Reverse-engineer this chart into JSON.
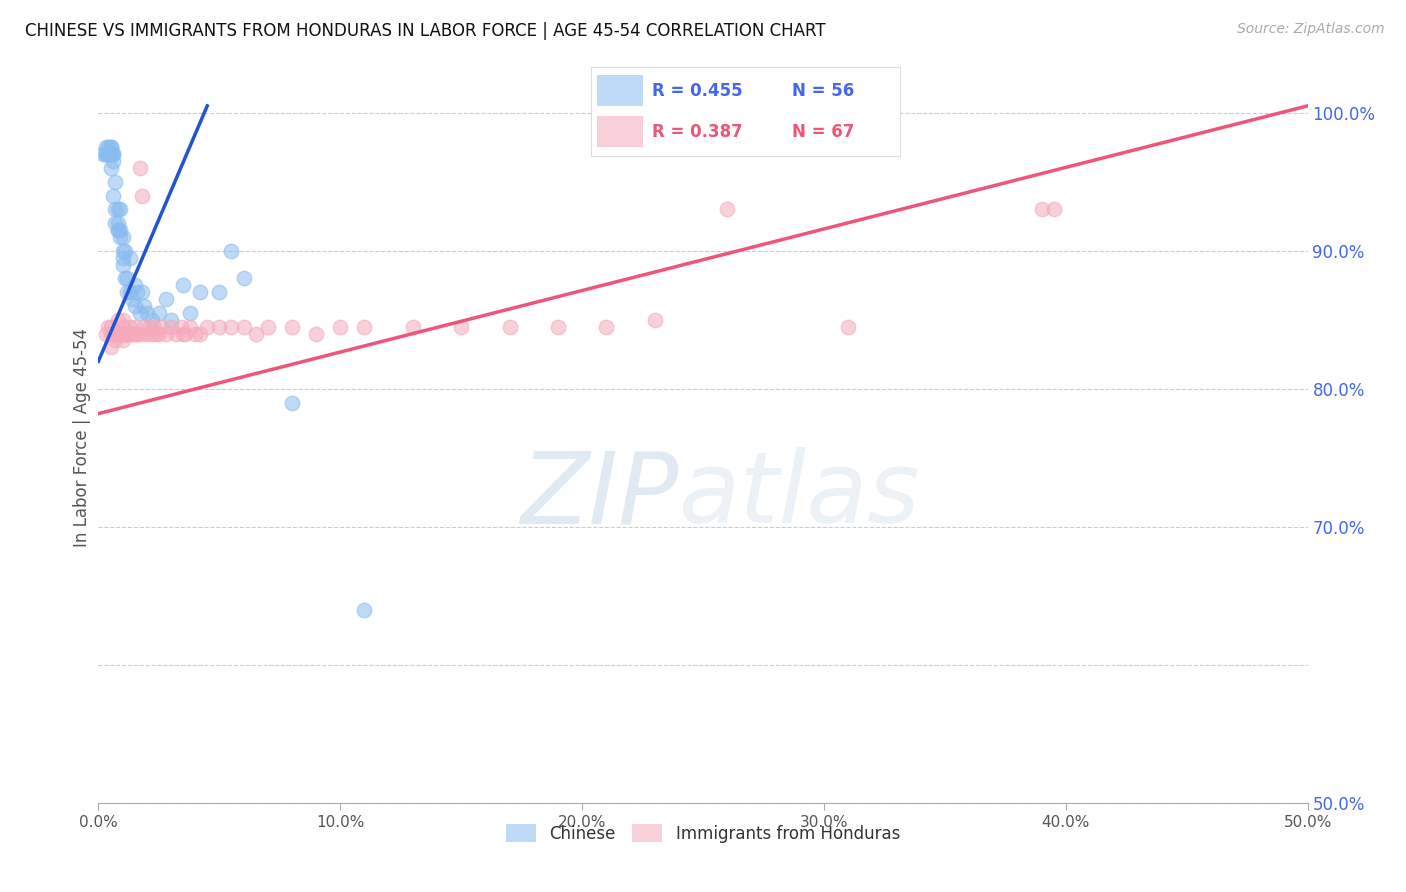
{
  "title": "CHINESE VS IMMIGRANTS FROM HONDURAS IN LABOR FORCE | AGE 45-54 CORRELATION CHART",
  "source": "Source: ZipAtlas.com",
  "ylabel": "In Labor Force | Age 45-54",
  "right_ytick_labels": [
    "100.0%",
    "90.0%",
    "80.0%",
    "70.0%",
    "50.0%"
  ],
  "right_ytick_values": [
    1.0,
    0.9,
    0.8,
    0.7,
    0.5
  ],
  "xlim": [
    0.0,
    0.5
  ],
  "ylim": [
    0.5,
    1.03
  ],
  "xtick_labels": [
    "0.0%",
    "10.0%",
    "20.0%",
    "30.0%",
    "40.0%",
    "50.0%"
  ],
  "xtick_values": [
    0.0,
    0.1,
    0.2,
    0.3,
    0.4,
    0.5
  ],
  "legend_blue_r": "R = 0.455",
  "legend_blue_n": "N = 56",
  "legend_pink_r": "R = 0.387",
  "legend_pink_n": "N = 67",
  "legend_blue_label": "Chinese",
  "legend_pink_label": "Immigrants from Honduras",
  "blue_color": "#89BCEF",
  "pink_color": "#F4AABC",
  "blue_line_color": "#2255CC",
  "pink_line_color": "#EE5577",
  "right_axis_color": "#4466EE",
  "blue_legend_text_color": "#4466EE",
  "pink_legend_text_color": "#EE5577",
  "blue_scatter_x": [
    0.002,
    0.003,
    0.003,
    0.003,
    0.004,
    0.004,
    0.004,
    0.005,
    0.005,
    0.005,
    0.005,
    0.005,
    0.006,
    0.006,
    0.006,
    0.006,
    0.007,
    0.007,
    0.007,
    0.008,
    0.008,
    0.008,
    0.008,
    0.009,
    0.009,
    0.009,
    0.01,
    0.01,
    0.01,
    0.01,
    0.011,
    0.011,
    0.012,
    0.012,
    0.013,
    0.013,
    0.014,
    0.015,
    0.015,
    0.016,
    0.017,
    0.018,
    0.019,
    0.02,
    0.022,
    0.025,
    0.028,
    0.03,
    0.035,
    0.038,
    0.042,
    0.05,
    0.055,
    0.06,
    0.08,
    0.11
  ],
  "blue_scatter_y": [
    0.97,
    0.97,
    0.975,
    0.97,
    0.97,
    0.975,
    0.97,
    0.96,
    0.97,
    0.975,
    0.975,
    0.97,
    0.97,
    0.97,
    0.965,
    0.94,
    0.92,
    0.93,
    0.95,
    0.915,
    0.92,
    0.915,
    0.93,
    0.91,
    0.915,
    0.93,
    0.89,
    0.9,
    0.895,
    0.91,
    0.88,
    0.9,
    0.87,
    0.88,
    0.895,
    0.87,
    0.865,
    0.86,
    0.875,
    0.87,
    0.855,
    0.87,
    0.86,
    0.855,
    0.85,
    0.855,
    0.865,
    0.85,
    0.875,
    0.855,
    0.87,
    0.87,
    0.9,
    0.88,
    0.79,
    0.64
  ],
  "pink_scatter_x": [
    0.003,
    0.004,
    0.005,
    0.005,
    0.005,
    0.006,
    0.006,
    0.007,
    0.007,
    0.008,
    0.008,
    0.009,
    0.009,
    0.01,
    0.01,
    0.01,
    0.01,
    0.011,
    0.011,
    0.012,
    0.012,
    0.013,
    0.014,
    0.014,
    0.015,
    0.016,
    0.016,
    0.017,
    0.018,
    0.018,
    0.019,
    0.02,
    0.021,
    0.022,
    0.023,
    0.024,
    0.025,
    0.026,
    0.028,
    0.03,
    0.032,
    0.034,
    0.035,
    0.036,
    0.038,
    0.04,
    0.042,
    0.045,
    0.05,
    0.055,
    0.06,
    0.065,
    0.07,
    0.08,
    0.09,
    0.1,
    0.11,
    0.13,
    0.15,
    0.17,
    0.19,
    0.21,
    0.23,
    0.26,
    0.31,
    0.39,
    0.395
  ],
  "pink_scatter_y": [
    0.84,
    0.845,
    0.83,
    0.84,
    0.845,
    0.84,
    0.84,
    0.84,
    0.835,
    0.84,
    0.85,
    0.84,
    0.84,
    0.835,
    0.84,
    0.845,
    0.85,
    0.84,
    0.84,
    0.84,
    0.84,
    0.845,
    0.84,
    0.84,
    0.845,
    0.84,
    0.84,
    0.96,
    0.84,
    0.94,
    0.845,
    0.84,
    0.845,
    0.84,
    0.845,
    0.84,
    0.84,
    0.845,
    0.84,
    0.845,
    0.84,
    0.845,
    0.84,
    0.84,
    0.845,
    0.84,
    0.84,
    0.845,
    0.845,
    0.845,
    0.845,
    0.84,
    0.845,
    0.845,
    0.84,
    0.845,
    0.845,
    0.845,
    0.845,
    0.845,
    0.845,
    0.845,
    0.85,
    0.93,
    0.845,
    0.93,
    0.93
  ],
  "blue_trend_x0": 0.0,
  "blue_trend_y0": 0.82,
  "blue_trend_x1": 0.045,
  "blue_trend_y1": 1.005,
  "pink_trend_x0": 0.0,
  "pink_trend_y0": 0.782,
  "pink_trend_x1": 0.5,
  "pink_trend_y1": 1.005
}
